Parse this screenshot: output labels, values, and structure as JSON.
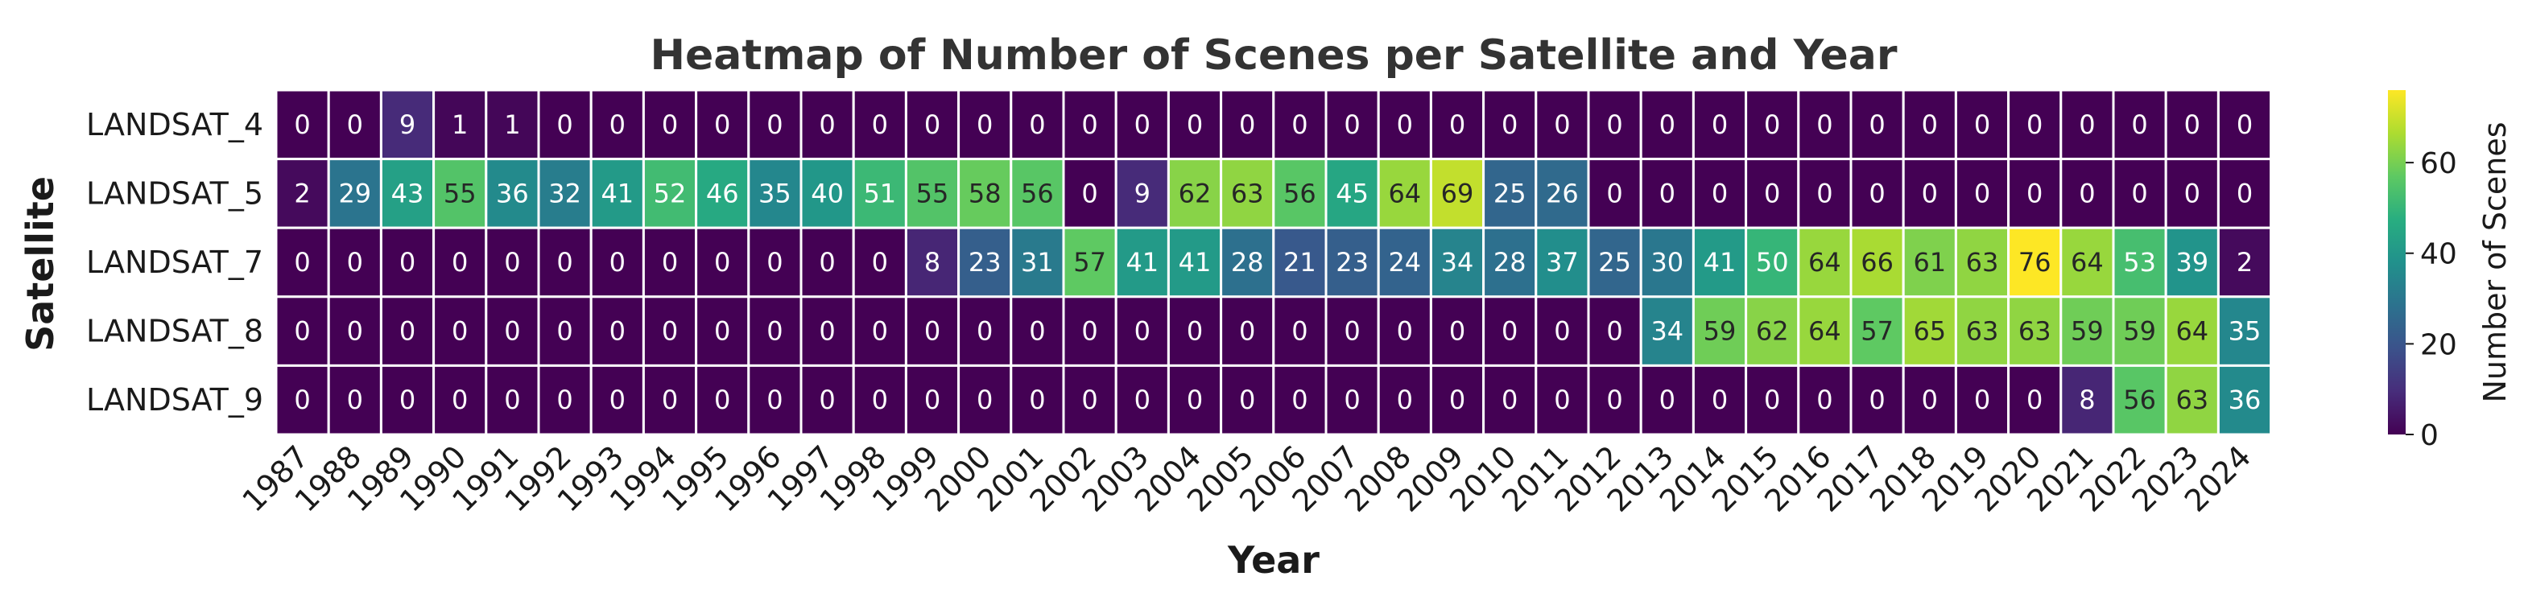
{
  "chart_data": {
    "type": "heatmap",
    "title": "Heatmap of Number of Scenes per Satellite and Year",
    "xlabel": "Year",
    "ylabel": "Satellite",
    "colorbar_label": "Number of Scenes",
    "colormap": "viridis",
    "vmin": 0,
    "vmax": 76,
    "colorbar_ticks": [
      "0",
      "20",
      "40",
      "60"
    ],
    "years": [
      "1987",
      "1988",
      "1989",
      "1990",
      "1991",
      "1992",
      "1993",
      "1994",
      "1995",
      "1996",
      "1997",
      "1998",
      "1999",
      "2000",
      "2001",
      "2002",
      "2003",
      "2004",
      "2005",
      "2006",
      "2007",
      "2008",
      "2009",
      "2010",
      "2011",
      "2012",
      "2013",
      "2014",
      "2015",
      "2016",
      "2017",
      "2018",
      "2019",
      "2020",
      "2021",
      "2022",
      "2023",
      "2024"
    ],
    "satellites": [
      "LANDSAT_4",
      "LANDSAT_5",
      "LANDSAT_7",
      "LANDSAT_8",
      "LANDSAT_9"
    ],
    "values": [
      [
        0,
        0,
        9,
        1,
        1,
        0,
        0,
        0,
        0,
        0,
        0,
        0,
        0,
        0,
        0,
        0,
        0,
        0,
        0,
        0,
        0,
        0,
        0,
        0,
        0,
        0,
        0,
        0,
        0,
        0,
        0,
        0,
        0,
        0,
        0,
        0,
        0,
        0
      ],
      [
        2,
        29,
        43,
        55,
        36,
        32,
        41,
        52,
        46,
        35,
        40,
        51,
        55,
        58,
        56,
        0,
        9,
        62,
        63,
        56,
        45,
        64,
        69,
        25,
        26,
        0,
        0,
        0,
        0,
        0,
        0,
        0,
        0,
        0,
        0,
        0,
        0,
        0
      ],
      [
        0,
        0,
        0,
        0,
        0,
        0,
        0,
        0,
        0,
        0,
        0,
        0,
        8,
        23,
        31,
        57,
        41,
        41,
        28,
        21,
        23,
        24,
        34,
        28,
        37,
        25,
        30,
        41,
        50,
        64,
        66,
        61,
        63,
        76,
        64,
        53,
        39,
        2
      ],
      [
        0,
        0,
        0,
        0,
        0,
        0,
        0,
        0,
        0,
        0,
        0,
        0,
        0,
        0,
        0,
        0,
        0,
        0,
        0,
        0,
        0,
        0,
        0,
        0,
        0,
        0,
        34,
        59,
        62,
        64,
        57,
        65,
        63,
        63,
        59,
        59,
        64,
        35
      ],
      [
        0,
        0,
        0,
        0,
        0,
        0,
        0,
        0,
        0,
        0,
        0,
        0,
        0,
        0,
        0,
        0,
        0,
        0,
        0,
        0,
        0,
        0,
        0,
        0,
        0,
        0,
        0,
        0,
        0,
        0,
        0,
        0,
        0,
        0,
        8,
        56,
        63,
        36
      ]
    ]
  }
}
